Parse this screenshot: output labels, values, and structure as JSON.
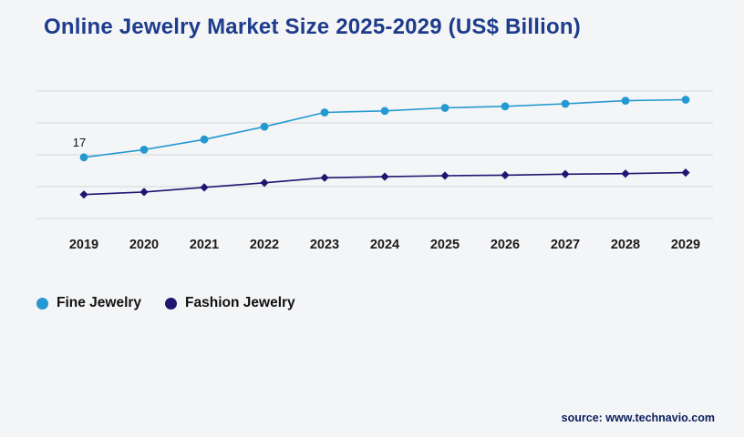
{
  "header": {
    "title": "Online Jewelry Market Size 2025-2029 (US$ Billion)"
  },
  "chart_data": {
    "type": "line",
    "title": "Online Jewelry Market Size 2025-2029 (US$ Billion)",
    "categories": [
      "2019",
      "2020",
      "2021",
      "2022",
      "2023",
      "2024",
      "2025",
      "2026",
      "2027",
      "2028",
      "2029"
    ],
    "series": [
      {
        "name": "Fine Jewelry",
        "color": "#2499d1",
        "marker": "circle",
        "values": [
          17,
          18.5,
          20.5,
          23,
          25.8,
          26.1,
          26.7,
          27,
          27.5,
          28.1,
          28.3
        ]
      },
      {
        "name": "Fashion Jewelry",
        "color": "#1e1670",
        "marker": "diamond",
        "values": [
          9.7,
          10.2,
          11.1,
          12,
          13,
          13.2,
          13.4,
          13.5,
          13.7,
          13.8,
          14
        ]
      }
    ],
    "ylim": [
      5,
      30
    ],
    "gridline_count": 5,
    "grid": "horizontal",
    "legend_position": "bottom-left",
    "annotation": {
      "series_index": 0,
      "point_index": 0,
      "text": "17"
    }
  },
  "footer": {
    "source": "source: www.technavio.com"
  }
}
